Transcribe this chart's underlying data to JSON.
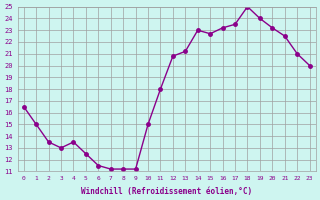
{
  "x": [
    0,
    1,
    2,
    3,
    4,
    5,
    6,
    7,
    8,
    9,
    10,
    11,
    12,
    13,
    14,
    15,
    16,
    17,
    18,
    19,
    20,
    21,
    22,
    23
  ],
  "y": [
    16.5,
    15.0,
    13.5,
    13.0,
    13.5,
    12.5,
    11.5,
    11.2,
    11.2,
    11.2,
    15.0,
    18.0,
    20.8,
    21.2,
    23.0,
    22.7,
    23.2,
    23.5,
    25.0,
    24.0,
    23.2,
    22.5,
    21.0,
    20.0
  ],
  "xlim": [
    -0.5,
    23.5
  ],
  "ylim": [
    11,
    25
  ],
  "yticks": [
    11,
    12,
    13,
    14,
    15,
    16,
    17,
    18,
    19,
    20,
    21,
    22,
    23,
    24,
    25
  ],
  "xticks": [
    0,
    1,
    2,
    3,
    4,
    5,
    6,
    7,
    8,
    9,
    10,
    11,
    12,
    13,
    14,
    15,
    16,
    17,
    18,
    19,
    20,
    21,
    22,
    23
  ],
  "xlabel": "Windchill (Refroidissement éolien,°C)",
  "line_color": "#8B008B",
  "marker_color": "#8B008B",
  "bg_color": "#cef5f0",
  "grid_color": "#a0a0a0",
  "tick_label_color": "#8B008B",
  "xlabel_color": "#8B008B"
}
